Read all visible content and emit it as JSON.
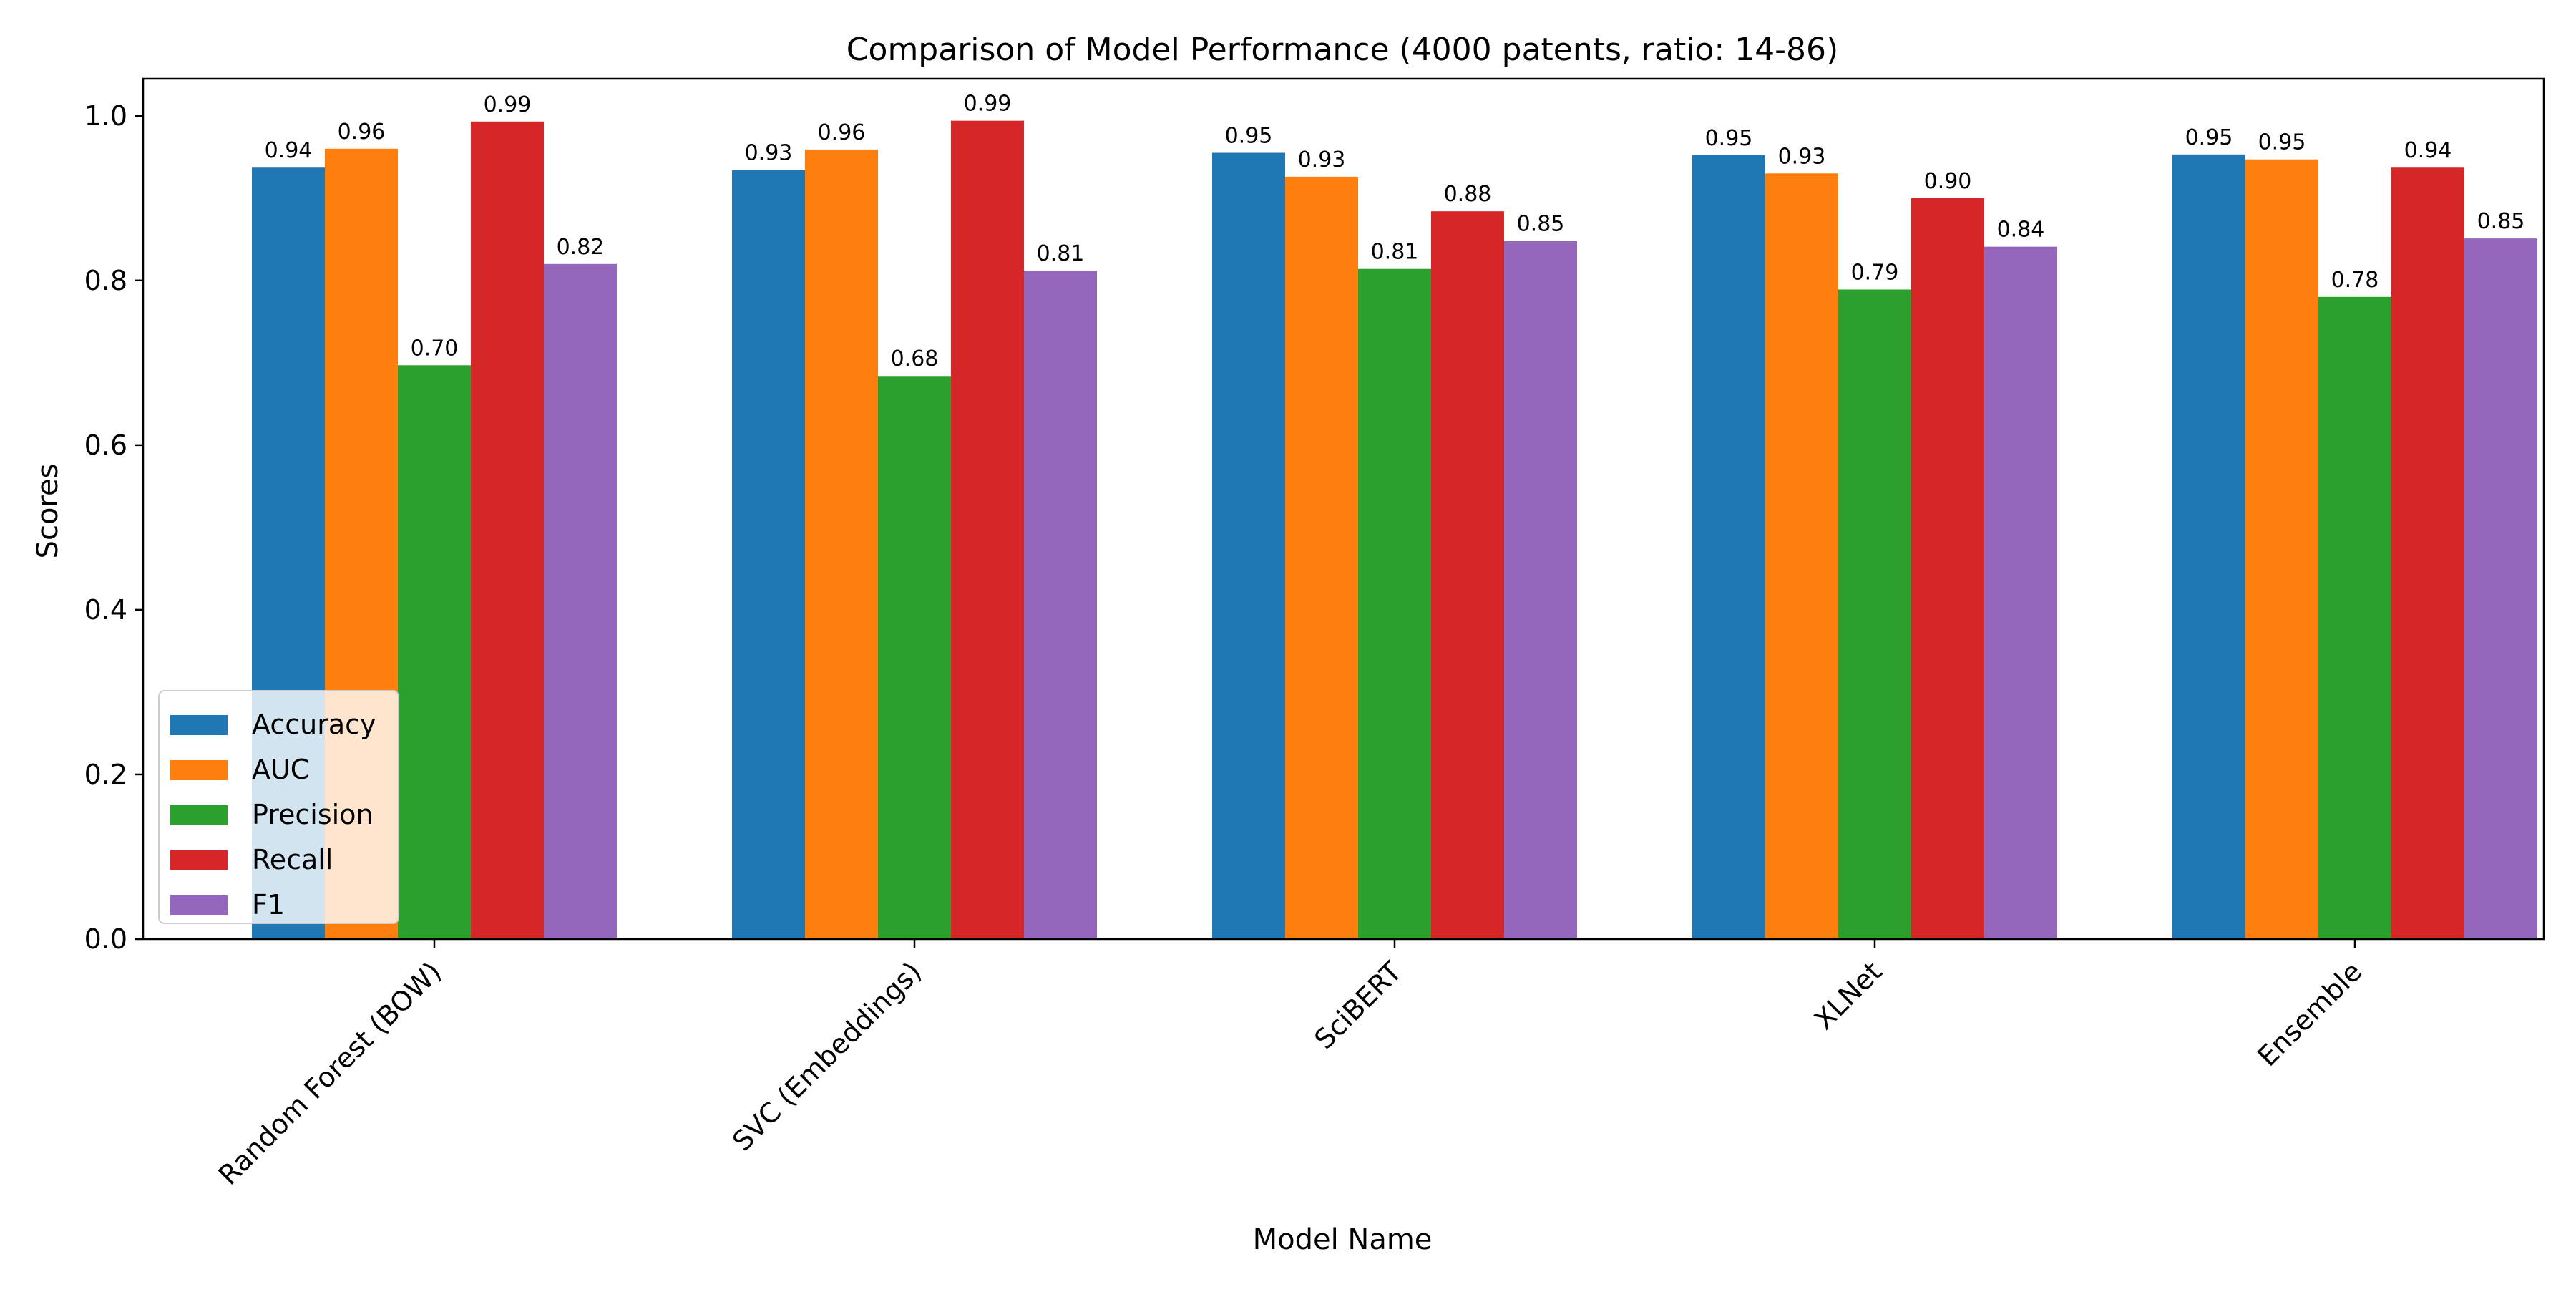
{
  "chart_data": {
    "type": "bar",
    "title": "Comparison of Model Performance (4000 patents, ratio: 14-86)",
    "xlabel": "Model Name",
    "ylabel": "Scores",
    "categories": [
      "Random Forest (BOW)",
      "SVC (Embeddings)",
      "SciBERT",
      "XLNet",
      "Ensemble"
    ],
    "series": [
      {
        "name": "Accuracy",
        "color": "#1f77b4",
        "values": [
          0.937,
          0.934,
          0.955,
          0.952,
          0.953
        ],
        "labels": [
          "0.94",
          "0.93",
          "0.95",
          "0.95",
          "0.95"
        ]
      },
      {
        "name": "AUC",
        "color": "#ff7f0e",
        "values": [
          0.96,
          0.959,
          0.926,
          0.93,
          0.947
        ],
        "labels": [
          "0.96",
          "0.96",
          "0.93",
          "0.93",
          "0.95"
        ]
      },
      {
        "name": "Precision",
        "color": "#2ca02c",
        "values": [
          0.697,
          0.684,
          0.814,
          0.789,
          0.78
        ],
        "labels": [
          "0.70",
          "0.68",
          "0.81",
          "0.79",
          "0.78"
        ]
      },
      {
        "name": "Recall",
        "color": "#d62728",
        "values": [
          0.993,
          0.994,
          0.884,
          0.9,
          0.937
        ],
        "labels": [
          "0.99",
          "0.99",
          "0.88",
          "0.90",
          "0.94"
        ]
      },
      {
        "name": "F1",
        "color": "#9467bd",
        "values": [
          0.82,
          0.812,
          0.848,
          0.841,
          0.851
        ],
        "labels": [
          "0.82",
          "0.81",
          "0.85",
          "0.84",
          "0.85"
        ]
      }
    ],
    "ylim": [
      0,
      1.045
    ],
    "yticks": [
      0.0,
      0.2,
      0.4,
      0.6,
      0.8,
      1.0
    ],
    "ytick_labels": [
      "0.0",
      "0.2",
      "0.4",
      "0.6",
      "0.8",
      "1.0"
    ],
    "grid": false,
    "legend_position": "lower-left"
  }
}
